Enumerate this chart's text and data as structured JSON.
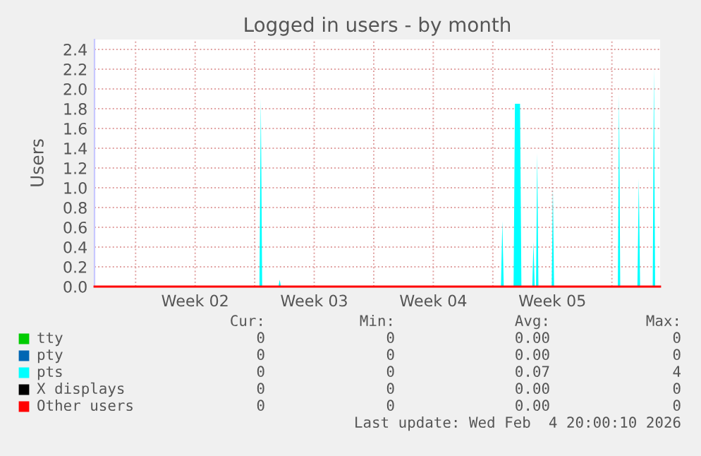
{
  "chart_data": {
    "type": "area",
    "title": "Logged in users - by month",
    "ylabel": "Users",
    "xlim": [
      "2026-01-02T14:00",
      "2026-02-04T20:00"
    ],
    "ylim": [
      0,
      2.5
    ],
    "xticks": [
      {
        "value": "2026-01-05",
        "label": null
      },
      {
        "value": "2026-01-08T12:00",
        "label": "Week 02"
      },
      {
        "value": "2026-01-12",
        "label": null
      },
      {
        "value": "2026-01-15T12:00",
        "label": "Week 03"
      },
      {
        "value": "2026-01-19",
        "label": null
      },
      {
        "value": "2026-01-22T12:00",
        "label": "Week 04"
      },
      {
        "value": "2026-01-26",
        "label": null
      },
      {
        "value": "2026-01-29T12:00",
        "label": "Week 05"
      },
      {
        "value": "2026-02-02",
        "label": null
      }
    ],
    "yticks": [
      {
        "value": 0,
        "label": "0.0"
      },
      {
        "value": 0.2,
        "label": "0.2"
      },
      {
        "value": 0.4,
        "label": "0.4"
      },
      {
        "value": 0.6,
        "label": "0.6"
      },
      {
        "value": 0.8,
        "label": "0.8"
      },
      {
        "value": 1.0,
        "label": "1.0"
      },
      {
        "value": 1.2,
        "label": "1.2"
      },
      {
        "value": 1.4,
        "label": "1.4"
      },
      {
        "value": 1.6,
        "label": "1.6"
      },
      {
        "value": 1.8,
        "label": "1.8"
      },
      {
        "value": 2.0,
        "label": "2.0"
      },
      {
        "value": 2.2,
        "label": "2.2"
      },
      {
        "value": 2.4,
        "label": "2.4"
      }
    ],
    "grid": true,
    "legend": "bottom",
    "series": [
      {
        "name": "tty",
        "color": "#00cc00",
        "type": "line"
      },
      {
        "name": "pty",
        "color": "#0066b3",
        "type": "line"
      },
      {
        "name": "pts",
        "color": "#00ffff",
        "x": [
          "2026-01-02T14:00",
          "2026-01-12T06:43",
          "2026-01-12T08:38",
          "2026-01-12T10:34",
          "2026-01-13T09:36",
          "2026-01-13T11:17",
          "2026-01-13T12:58",
          "2026-01-26T11:31",
          "2026-01-26T13:26",
          "2026-01-26T15:22",
          "2026-01-27T05:17",
          "2026-01-27T07:12",
          "2026-01-27T14:24",
          "2026-01-27T16:19",
          "2026-01-28T07:41",
          "2026-01-28T09:22",
          "2026-01-28T11:02",
          "2026-01-28T12:58",
          "2026-01-28T14:38",
          "2026-01-28T16:19",
          "2026-01-29T11:02",
          "2026-01-29T12:43",
          "2026-01-29T14:24",
          "2026-02-02T08:24",
          "2026-02-02T10:05",
          "2026-02-02T11:46",
          "2026-02-03T12:00",
          "2026-02-03T13:55",
          "2026-02-03T15:50",
          "2026-02-04T09:36",
          "2026-02-04T11:17",
          "2026-02-04T12:58",
          "2026-02-04T20:00"
        ],
        "values": [
          0,
          0,
          1.9,
          0,
          0,
          0.07,
          0,
          0,
          0.66,
          0,
          0,
          1.85,
          1.85,
          0,
          0,
          0.45,
          0,
          0,
          1.35,
          0,
          0,
          1.0,
          0,
          0,
          1.95,
          0,
          0,
          1.09,
          0,
          0,
          2.21,
          0,
          0
        ]
      },
      {
        "name": "X displays",
        "color": "#000000",
        "type": "line"
      },
      {
        "name": "Other users",
        "color": "#ff0000",
        "type": "line",
        "x": [
          "2026-01-02T14:00",
          "2026-02-04T20:00"
        ],
        "values": [
          0,
          0
        ]
      }
    ],
    "annotations": [
      "Cur:",
      "Min:",
      "Avg:",
      "Max:",
      "0",
      "0",
      "0.00",
      "0",
      "0",
      "0",
      "0.00",
      "0",
      "0",
      "0",
      "0.07",
      "4",
      "0",
      "0",
      "0.00",
      "0",
      "0",
      "0",
      "0.00",
      "0",
      "Last update: Wed Feb  4 20:00:10 2026"
    ]
  }
}
